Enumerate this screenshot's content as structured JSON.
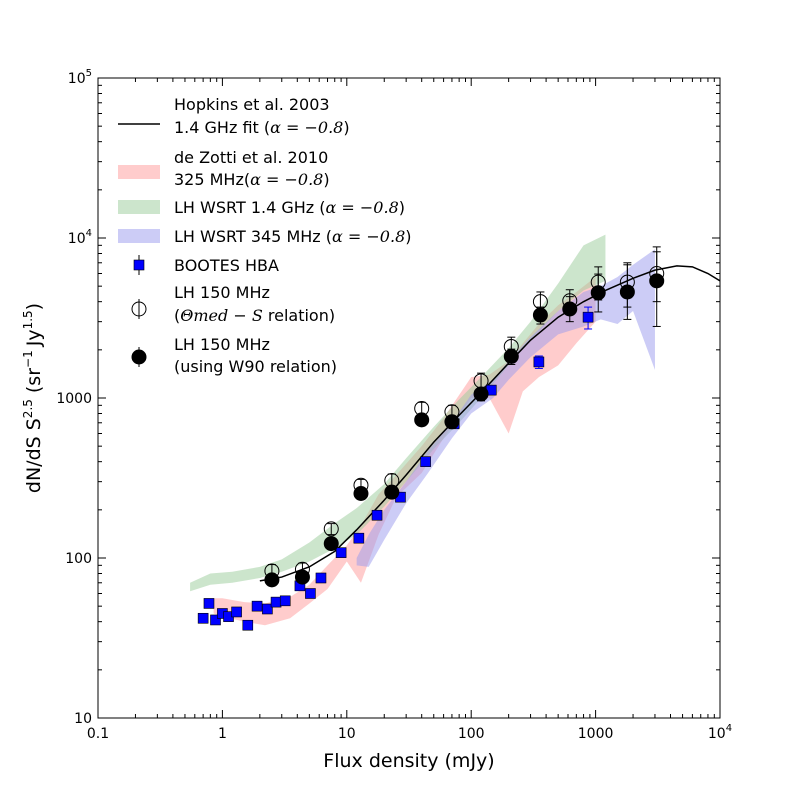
{
  "chart_data": {
    "type": "scatter",
    "title": "",
    "xlabel": "Flux density (mJy)",
    "ylabel": "dN/dS S",
    "ylabel_power": "2.5",
    "ylabel_units": "(sr",
    "ylabel_units_power": "−1",
    "ylabel_units_tail": "Jy",
    "ylabel_units_tail_power": "1.5",
    "ylabel_close": ")",
    "xscale": "log",
    "yscale": "log",
    "xlim": [
      0.1,
      10000
    ],
    "ylim": [
      10,
      100000
    ],
    "x_ticks": [
      {
        "value": 0.1,
        "label": "0.1"
      },
      {
        "value": 1,
        "label": "1"
      },
      {
        "value": 10,
        "label": "10"
      },
      {
        "value": 100,
        "label": "100"
      },
      {
        "value": 1000,
        "label": "1000"
      },
      {
        "value": 10000,
        "label": "10",
        "power": "4"
      }
    ],
    "y_ticks": [
      {
        "value": 10,
        "label": "10"
      },
      {
        "value": 100,
        "label": "100"
      },
      {
        "value": 1000,
        "label": "1000"
      },
      {
        "value": 10000,
        "label": "10",
        "power": "4"
      },
      {
        "value": 100000,
        "label": "10",
        "power": "5"
      }
    ],
    "legend_position": "upper-left",
    "legend": [
      {
        "kind": "line",
        "color": "#000000",
        "text1": "Hopkins et al. 2003",
        "text2": "1.4 GHz fit (",
        "math": "α = −0.8",
        "close": ")"
      },
      {
        "kind": "band",
        "color": "#ff9999",
        "text1": "de Zotti et al. 2010",
        "text2": "325 MHz(",
        "math": "α = −0.8",
        "close": ")"
      },
      {
        "kind": "band",
        "color": "#99cc99",
        "text1": "",
        "text2": "LH WSRT 1.4 GHz (",
        "math": "α = −0.8",
        "close": ")"
      },
      {
        "kind": "band",
        "color": "#9999ee",
        "text1": "",
        "text2": "LH WSRT 345 MHz (",
        "math": "α = −0.8",
        "close": ")"
      },
      {
        "kind": "square",
        "color": "#0000ff",
        "text1": "",
        "text2": "BOOTES HBA",
        "math": "",
        "close": ""
      },
      {
        "kind": "open-circle",
        "color": "#000000",
        "text1": "LH 150 MHz",
        "text2": "(",
        "math": "Θmed − S",
        "close": " relation)"
      },
      {
        "kind": "filled-circle",
        "color": "#000000",
        "text1": "LH 150 MHz",
        "text2": "(using W90 relation)",
        "math": "",
        "close": ""
      }
    ],
    "series": [
      {
        "name": "Hopkins et al. 2003 1.4 GHz fit (α = −0.8)",
        "kind": "line",
        "color": "#000000",
        "x": [
          2,
          3,
          5,
          8,
          12,
          20,
          30,
          50,
          80,
          120,
          200,
          300,
          500,
          800,
          1200,
          2000,
          3000,
          4500,
          6000,
          8000,
          10000
        ],
        "y": [
          72,
          76,
          88,
          110,
          150,
          230,
          330,
          530,
          780,
          1080,
          1650,
          2300,
          3200,
          4000,
          4700,
          5600,
          6300,
          6700,
          6600,
          6000,
          5400
        ]
      },
      {
        "name": "de Zotti et al. 2010 325 MHz (α = −0.8)",
        "kind": "band",
        "color": "#ff9999",
        "x": [
          0.85,
          1.0,
          1.5,
          2.2,
          3.5,
          5,
          7,
          10,
          13,
          18,
          25,
          40,
          60,
          100,
          140,
          200,
          260,
          350,
          500,
          700,
          1000
        ],
        "low": [
          45,
          43,
          40,
          38,
          42,
          52,
          64,
          95,
          70,
          140,
          240,
          340,
          560,
          1000,
          1000,
          600,
          1100,
          1350,
          1600,
          2200,
          3000
        ],
        "high": [
          56,
          56,
          53,
          52,
          57,
          68,
          90,
          120,
          160,
          250,
          330,
          500,
          750,
          1350,
          1400,
          1700,
          2200,
          2900,
          3800,
          4600,
          5700
        ]
      },
      {
        "name": "LH WSRT 1.4 GHz (α = −0.8)",
        "kind": "band",
        "color": "#99cc99",
        "x": [
          0.55,
          0.8,
          1.2,
          2,
          3,
          5,
          8,
          12,
          20,
          30,
          50,
          80,
          120,
          200,
          300,
          500,
          800,
          1200
        ],
        "low": [
          62,
          68,
          70,
          75,
          82,
          95,
          115,
          140,
          210,
          300,
          480,
          700,
          1000,
          1600,
          2300,
          3500,
          4700,
          5400
        ],
        "high": [
          70,
          80,
          82,
          88,
          98,
          125,
          165,
          205,
          290,
          420,
          660,
          980,
          1350,
          2050,
          3000,
          5200,
          9000,
          10500
        ]
      },
      {
        "name": "LH WSRT 345 MHz (α = −0.8)",
        "kind": "band",
        "color": "#9999ee",
        "x": [
          12,
          15,
          20,
          30,
          45,
          70,
          100,
          150,
          200,
          300,
          500,
          800,
          1100,
          1500,
          2000,
          3000
        ],
        "low": [
          90,
          88,
          130,
          220,
          340,
          560,
          800,
          1000,
          1300,
          1800,
          2500,
          2800,
          3100,
          2900,
          3500,
          1500
        ],
        "high": [
          100,
          140,
          200,
          300,
          470,
          700,
          1050,
          1300,
          1700,
          2400,
          3500,
          4600,
          5000,
          5700,
          6800,
          8500
        ]
      },
      {
        "name": "BOOTES HBA",
        "kind": "square",
        "color": "#0000ff",
        "x": [
          0.7,
          0.78,
          0.88,
          1.0,
          1.12,
          1.3,
          1.6,
          1.9,
          2.3,
          2.7,
          3.2,
          4.2,
          5.1,
          6.2,
          9,
          12.5,
          17.5,
          27,
          43,
          73,
          145,
          350,
          870
        ],
        "y": [
          42,
          52,
          41,
          45,
          43,
          46,
          38,
          50,
          48,
          53,
          54,
          67,
          60,
          75,
          108,
          133,
          185,
          240,
          400,
          690,
          1120,
          1680,
          3200
        ],
        "err_low": [
          0,
          0,
          0,
          0,
          0,
          0,
          0,
          0,
          0,
          0,
          0,
          0,
          0,
          0,
          0,
          0,
          0,
          0,
          0,
          0,
          0,
          150,
          500
        ],
        "err_high": [
          0,
          0,
          0,
          0,
          0,
          0,
          0,
          0,
          0,
          0,
          0,
          0,
          0,
          0,
          0,
          0,
          0,
          0,
          0,
          0,
          0,
          150,
          500
        ]
      },
      {
        "name": "LH 150 MHz (Θmed − S relation)",
        "kind": "open-circle",
        "color": "#000000",
        "x": [
          2.5,
          4.4,
          7.5,
          13,
          23,
          40,
          70,
          120,
          210,
          360,
          620,
          1050,
          1800,
          3100
        ],
        "y": [
          83,
          85,
          152,
          285,
          305,
          860,
          820,
          1280,
          2100,
          4000,
          4050,
          5300,
          5300,
          6000
        ],
        "err_low": [
          8,
          8,
          12,
          25,
          30,
          80,
          80,
          150,
          300,
          600,
          700,
          1200,
          1600,
          2000
        ],
        "err_high": [
          8,
          8,
          12,
          25,
          30,
          80,
          80,
          150,
          300,
          600,
          700,
          1300,
          1700,
          2200
        ]
      },
      {
        "name": "LH 150 MHz (using W90 relation)",
        "kind": "filled-circle",
        "color": "#000000",
        "x": [
          2.5,
          4.4,
          7.5,
          13,
          23,
          40,
          70,
          120,
          210,
          360,
          620,
          1050,
          1800,
          3100
        ],
        "y": [
          73,
          76,
          123,
          253,
          258,
          730,
          710,
          1060,
          1820,
          3300,
          3600,
          4550,
          4600,
          5400
        ],
        "err_low": [
          5,
          5,
          8,
          15,
          20,
          50,
          60,
          100,
          200,
          400,
          600,
          1100,
          1500,
          2600
        ],
        "err_high": [
          5,
          5,
          8,
          15,
          20,
          50,
          60,
          100,
          200,
          400,
          700,
          1400,
          2200,
          3400
        ]
      }
    ]
  }
}
